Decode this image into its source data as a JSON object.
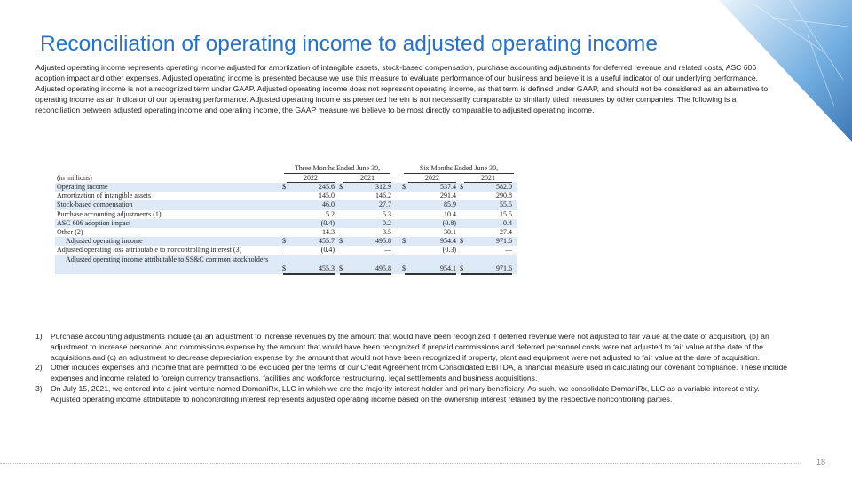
{
  "title": "Reconciliation of operating income to adjusted operating income",
  "intro": "Adjusted operating income represents operating income adjusted for amortization of intangible assets, stock-based compensation, purchase accounting adjustments for deferred revenue and related costs, ASC 606 adoption impact and other expenses.  Adjusted operating income is presented because we use this measure to evaluate performance of our business and believe it is a useful indicator of our underlying performance.  Adjusted operating income is not a recognized term under GAAP.  Adjusted operating income does not represent operating income, as that term is defined under GAAP, and should not be considered as an alternative to operating income as an indicator of our operating performance.  Adjusted operating income as presented herein is not necessarily comparable to similarly titled measures by other companies.  The following is a reconciliation between adjusted operating income and operating income, the GAAP measure we believe to be most directly comparable to adjusted operating income.",
  "table": {
    "unit": "(in millions)",
    "currency": "$",
    "groups": [
      "Three Months Ended June 30,",
      "Six Months Ended June 30,"
    ],
    "years": [
      "2022",
      "2021",
      "2022",
      "2021"
    ],
    "rows": [
      {
        "label": "Operating income",
        "values": [
          "245.6",
          "312.9",
          "537.4",
          "582.0"
        ],
        "dollar": true
      },
      {
        "label": "Amortization of intangible assets",
        "values": [
          "145.0",
          "146.2",
          "291.4",
          "290.8"
        ]
      },
      {
        "label": "Stock-based compensation",
        "values": [
          "46.0",
          "27.7",
          "85.9",
          "55.5"
        ]
      },
      {
        "label": "Purchase accounting adjustments (1)",
        "values": [
          "5.2",
          "5.3",
          "10.4",
          "15.5"
        ]
      },
      {
        "label": "ASC 606 adoption impact",
        "values": [
          "(0.4)",
          "0.2",
          "(0.8)",
          "0.4"
        ]
      },
      {
        "label": "Other (2)",
        "values": [
          "14.3",
          "3.5",
          "30.1",
          "27.4"
        ],
        "underline": true
      },
      {
        "label": "Adjusted operating income",
        "values": [
          "455.7",
          "495.8",
          "954.4",
          "971.6"
        ],
        "dollar": true,
        "indent": true
      },
      {
        "label": "Adjusted operating loss attributable to noncontrolling interest (3)",
        "values": [
          "(0.4)",
          "—",
          "(0.3)",
          "—"
        ],
        "underline": true
      },
      {
        "label": "Adjusted operating income attributable to SS&C common stockholders",
        "values": [
          "455.3",
          "495.8",
          "954.1",
          "971.6"
        ],
        "dollar": true,
        "indent": true,
        "double": true
      }
    ]
  },
  "footnotes": [
    {
      "number": "1)",
      "text": "Purchase accounting adjustments include (a) an adjustment to increase revenues by the amount that would have been recognized if deferred revenue were not adjusted to fair value at the date of acquisition, (b) an adjustment to increase personnel and commissions expense by the amount that would have been recognized if prepaid commissions and deferred personnel costs were not adjusted to fair value at the date of the acquisitions and (c) an adjustment to decrease depreciation expense by the amount that would not have been recognized if property, plant and equipment were not adjusted to fair value at the date of acquisition."
    },
    {
      "number": "2)",
      "text": "Other includes expenses and income that are permitted to be excluded per the terms of our Credit Agreement from Consolidated EBITDA, a financial measure used in calculating our covenant compliance.  These include expenses and income related to foreign currency transactions, facilities and workforce restructuring, legal settlements and business acquisitions."
    },
    {
      "number": "3)",
      "text": "On July 15, 2021, we entered into a joint venture named DomaniRx, LLC in which we are the majority interest holder and  primary beneficiary.  As such, we consolidate DomaniRx, LLC as a variable interest entity. Adjusted operating income attributable to noncontrolling interest represents adjusted operating income based on the ownership interest retained by the respective noncontrolling parties."
    }
  ],
  "page_number": "18"
}
